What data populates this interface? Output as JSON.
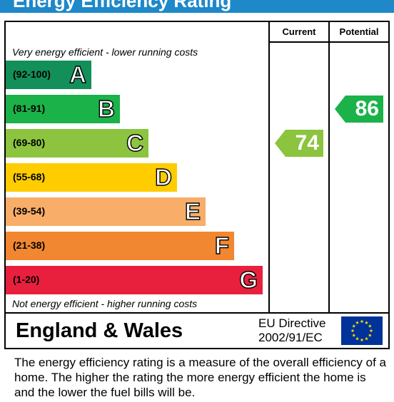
{
  "title": "Energy Efficiency Rating",
  "headers": {
    "current": "Current",
    "potential": "Potential"
  },
  "top_note": "Very energy efficient - lower running costs",
  "bottom_note": "Not energy efficient - higher running costs",
  "colors": {
    "title_bar": "#1e88c9",
    "A": "#138f5a",
    "B": "#1bb24a",
    "C": "#8cc43f",
    "D": "#ffcc00",
    "E": "#f8ad69",
    "F": "#f18730",
    "G": "#e8203d",
    "current_arrow": "#8cc43f",
    "potential_arrow": "#1bb24a",
    "eu_flag": "#003399",
    "eu_stars": "#ffdd00"
  },
  "chart_data": {
    "type": "bar",
    "categories": [
      "A",
      "B",
      "C",
      "D",
      "E",
      "F",
      "G"
    ],
    "ranges": [
      "(92-100)",
      "(81-91)",
      "(69-80)",
      "(55-68)",
      "(39-54)",
      "(21-38)",
      "(1-20)"
    ],
    "current": 74,
    "current_band": "C",
    "potential": 86,
    "potential_band": "B"
  },
  "footer": {
    "region": "England & Wales",
    "directive_line1": "EU Directive",
    "directive_line2": "2002/91/EC",
    "flag_icon": "eu-flag-icon"
  },
  "description": "The energy efficiency rating is a measure of the overall efficiency of a home.  The higher the rating the more energy efficient the home is and the lower the fuel bills will be."
}
